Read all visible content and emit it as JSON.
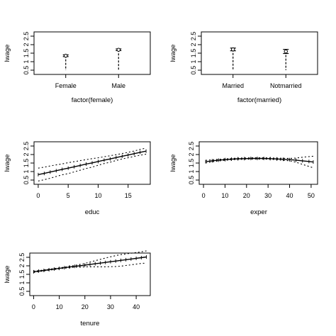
{
  "chart_data": [
    {
      "id": "p1",
      "type": "errorbar",
      "xlabel": "factor(female)",
      "ylabel": "lwage",
      "ylim": [
        0.25,
        2.75
      ],
      "yticks": [
        0.5,
        1,
        1.5,
        2,
        2.5
      ],
      "yticklabels": [
        "0.5",
        "1",
        "1.5",
        "2",
        "2.5"
      ],
      "categories": [
        "Female",
        "Male"
      ],
      "estimates": [
        1.35,
        1.7
      ],
      "ci": [
        [
          1.3,
          1.4
        ],
        [
          1.65,
          1.75
        ]
      ],
      "dash_bottom": 0.5
    },
    {
      "id": "p2",
      "type": "errorbar",
      "xlabel": "factor(married)",
      "ylabel": "lwage",
      "ylim": [
        0.25,
        2.75
      ],
      "yticks": [
        0.5,
        1,
        1.5,
        2,
        2.5
      ],
      "yticklabels": [
        "0.5",
        "1",
        "1.5",
        "2",
        "2.5"
      ],
      "categories": [
        "Married",
        "Notmarried"
      ],
      "estimates": [
        1.72,
        1.6
      ],
      "ci": [
        [
          1.64,
          1.8
        ],
        [
          1.48,
          1.72
        ]
      ],
      "dash_bottom": 0.5
    },
    {
      "id": "p3",
      "type": "line",
      "xlabel": "educ",
      "ylabel": "lwage",
      "xlim": [
        -0.7,
        18.7
      ],
      "ylim": [
        0.25,
        2.75
      ],
      "xticks": [
        0,
        5,
        10,
        15
      ],
      "xticklabels": [
        "0",
        "5",
        "10",
        "15"
      ],
      "yticks": [
        0.5,
        1,
        1.5,
        2,
        2.5
      ],
      "yticklabels": [
        "0.5",
        "1",
        "1.5",
        "2",
        "2.5"
      ],
      "x": [
        0,
        1,
        2,
        3,
        4,
        5,
        6,
        7,
        8,
        9,
        10,
        11,
        12,
        13,
        14,
        15,
        16,
        17,
        18
      ],
      "fit": [
        0.82,
        0.89,
        0.97,
        1.05,
        1.13,
        1.2,
        1.28,
        1.36,
        1.44,
        1.51,
        1.59,
        1.67,
        1.74,
        1.82,
        1.9,
        1.97,
        2.05,
        2.13,
        2.2
      ],
      "upper": [
        1.2,
        1.26,
        1.33,
        1.39,
        1.45,
        1.52,
        1.58,
        1.64,
        1.7,
        1.76,
        1.81,
        1.87,
        1.93,
        1.99,
        2.06,
        2.13,
        2.21,
        2.3,
        2.38
      ],
      "lower": [
        0.44,
        0.52,
        0.61,
        0.71,
        0.81,
        0.88,
        0.98,
        1.08,
        1.18,
        1.26,
        1.37,
        1.47,
        1.55,
        1.65,
        1.74,
        1.81,
        1.89,
        1.96,
        2.02
      ]
    },
    {
      "id": "p4",
      "type": "line",
      "xlabel": "exper",
      "ylabel": "lwage",
      "xlim": [
        -2,
        53
      ],
      "ylim": [
        0.25,
        2.75
      ],
      "xticks": [
        0,
        10,
        20,
        30,
        40,
        50
      ],
      "xticklabels": [
        "0",
        "10",
        "20",
        "30",
        "40",
        "50"
      ],
      "yticks": [
        0.5,
        1,
        1.5,
        2,
        2.5
      ],
      "yticklabels": [
        "0.5",
        "1",
        "1.5",
        "2",
        "2.5"
      ],
      "x": [
        1,
        4,
        7,
        10,
        13,
        16,
        19,
        22,
        25,
        28,
        31,
        34,
        37,
        40,
        43,
        46,
        49,
        51
      ],
      "fit": [
        1.58,
        1.63,
        1.67,
        1.7,
        1.73,
        1.75,
        1.76,
        1.77,
        1.77,
        1.77,
        1.76,
        1.74,
        1.72,
        1.7,
        1.67,
        1.63,
        1.59,
        1.56
      ],
      "upper": [
        1.66,
        1.69,
        1.72,
        1.74,
        1.77,
        1.79,
        1.8,
        1.81,
        1.81,
        1.81,
        1.8,
        1.79,
        1.78,
        1.77,
        1.79,
        1.84,
        1.88,
        1.9
      ],
      "lower": [
        1.5,
        1.57,
        1.62,
        1.66,
        1.69,
        1.71,
        1.72,
        1.73,
        1.73,
        1.73,
        1.72,
        1.69,
        1.66,
        1.63,
        1.55,
        1.42,
        1.3,
        1.22
      ]
    },
    {
      "id": "p5",
      "type": "line",
      "xlabel": "tenure",
      "ylabel": "lwage",
      "xlim": [
        -1.5,
        45.5
      ],
      "ylim": [
        0.25,
        2.75
      ],
      "xticks": [
        0,
        10,
        20,
        30,
        40
      ],
      "xticklabels": [
        "0",
        "10",
        "20",
        "30",
        "40"
      ],
      "yticks": [
        0.5,
        1,
        1.5,
        2,
        2.5
      ],
      "yticklabels": [
        "0.5",
        "1",
        "1.5",
        "2",
        "2.5"
      ],
      "x": [
        0,
        2,
        4,
        6,
        8,
        10,
        12,
        14,
        16,
        18,
        20,
        22,
        24,
        26,
        28,
        30,
        32,
        34,
        36,
        38,
        40,
        42,
        44
      ],
      "fit": [
        1.65,
        1.69,
        1.73,
        1.77,
        1.81,
        1.85,
        1.89,
        1.93,
        1.97,
        2.0,
        2.04,
        2.08,
        2.12,
        2.16,
        2.2,
        2.24,
        2.28,
        2.32,
        2.36,
        2.4,
        2.44,
        2.48,
        2.52
      ],
      "upper": [
        1.69,
        1.72,
        1.76,
        1.8,
        1.84,
        1.88,
        1.92,
        1.97,
        2.02,
        2.08,
        2.14,
        2.22,
        2.3,
        2.38,
        2.46,
        2.53,
        2.6,
        2.66,
        2.7,
        2.74,
        2.78,
        2.82,
        2.88
      ],
      "lower": [
        1.61,
        1.66,
        1.7,
        1.74,
        1.78,
        1.82,
        1.86,
        1.89,
        1.92,
        1.92,
        1.94,
        1.94,
        1.94,
        1.94,
        1.94,
        1.95,
        1.96,
        1.98,
        2.02,
        2.06,
        2.1,
        2.14,
        2.16
      ]
    }
  ]
}
